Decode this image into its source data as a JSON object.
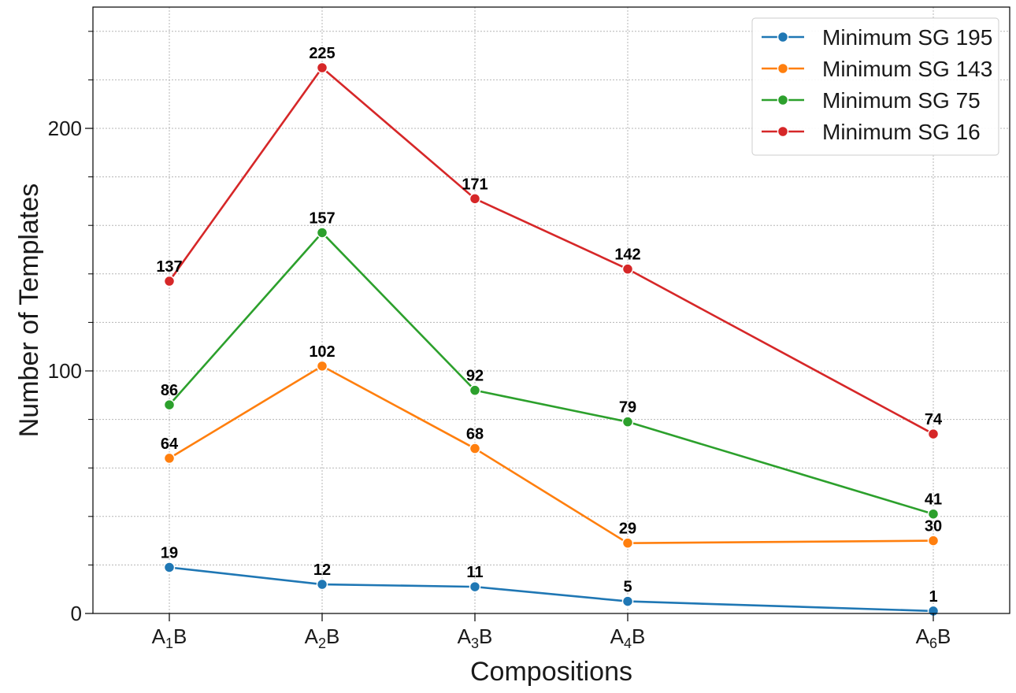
{
  "chart_data": {
    "type": "line",
    "xlabel": "Compositions",
    "ylabel": "Number of Templates",
    "categories": [
      {
        "base": "A",
        "sub": "1",
        "tail": "B",
        "x": 1
      },
      {
        "base": "A",
        "sub": "2",
        "tail": "B",
        "x": 2
      },
      {
        "base": "A",
        "sub": "3",
        "tail": "B",
        "x": 3
      },
      {
        "base": "A",
        "sub": "4",
        "tail": "B",
        "x": 4
      },
      {
        "base": "A",
        "sub": "6",
        "tail": "B",
        "x": 6
      }
    ],
    "x_range": [
      0.5,
      6.5
    ],
    "ylim": [
      0,
      250
    ],
    "y_ticks": [
      0,
      100,
      200
    ],
    "y_minor_step": 20,
    "grid": true,
    "legend_position": "top-right",
    "series": [
      {
        "name": "Minimum SG 195",
        "color": "#1f77b4",
        "values": [
          19,
          12,
          11,
          5,
          1
        ]
      },
      {
        "name": "Minimum SG 143",
        "color": "#ff7f0e",
        "values": [
          64,
          102,
          68,
          29,
          30
        ]
      },
      {
        "name": "Minimum SG 75",
        "color": "#2ca02c",
        "values": [
          86,
          157,
          92,
          79,
          41
        ]
      },
      {
        "name": "Minimum SG 16",
        "color": "#d62728",
        "values": [
          137,
          225,
          171,
          142,
          74
        ]
      }
    ]
  }
}
